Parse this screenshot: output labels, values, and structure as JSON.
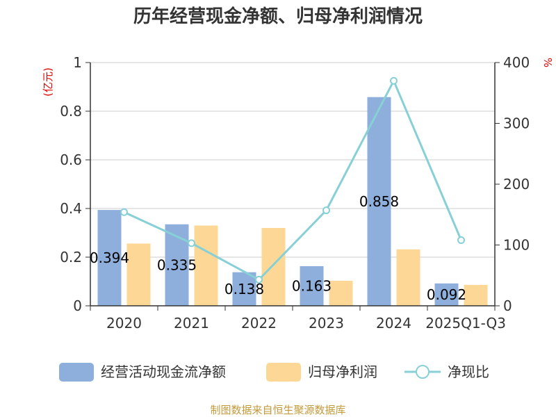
{
  "title": "历年经营现金净额、归母净利润情况",
  "source": "制图数据来自恒生聚源数据库",
  "chart_data": {
    "type": "bar",
    "categories": [
      "2020",
      "2021",
      "2022",
      "2023",
      "2024",
      "2025Q1-Q3"
    ],
    "series": [
      {
        "name": "经营活动现金流净额",
        "axis": "left",
        "kind": "bar",
        "color": "#8eafdc",
        "values": [
          0.394,
          0.335,
          0.138,
          0.163,
          0.858,
          0.092
        ]
      },
      {
        "name": "归母净利润",
        "axis": "left",
        "kind": "bar",
        "color": "#fdd795",
        "values": [
          0.256,
          0.33,
          0.32,
          0.103,
          0.232,
          0.086
        ]
      },
      {
        "name": "净现比",
        "axis": "right",
        "kind": "line",
        "color": "#86d0d6",
        "values": [
          154,
          103,
          43,
          157,
          370,
          108
        ]
      }
    ],
    "data_labels": [
      "0.394",
      "0.335",
      "0.138",
      "0.163",
      "0.858",
      "0.092"
    ],
    "left_axis": {
      "unit": "(亿元)",
      "min": 0,
      "max": 1,
      "ticks": [
        0,
        0.2,
        0.4,
        0.6,
        0.8,
        1
      ],
      "tick_labels": [
        "0",
        "0.2",
        "0.4",
        "0.6",
        "0.8",
        "1"
      ]
    },
    "right_axis": {
      "unit": "%",
      "min": 0,
      "max": 400,
      "ticks": [
        0,
        100,
        200,
        300,
        400
      ],
      "tick_labels": [
        "0",
        "100",
        "200",
        "300",
        "400"
      ]
    },
    "grid": true,
    "legend_position": "bottom"
  }
}
